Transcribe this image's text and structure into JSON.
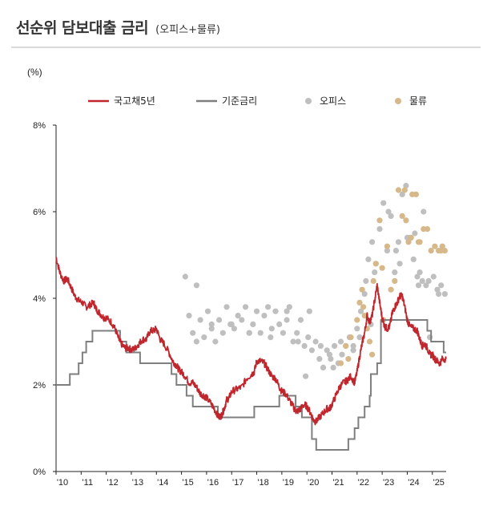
{
  "title": "선순위 담보대출 금리",
  "subtitle": "(오피스+물류)",
  "chart_data": {
    "type": "line",
    "ylabel": "(%)",
    "ylim": [
      0,
      8
    ],
    "yticks": [
      {
        "value": 0,
        "label": "0%"
      },
      {
        "value": 2,
        "label": "2%"
      },
      {
        "value": 4,
        "label": "4%"
      },
      {
        "value": 6,
        "label": "6%"
      },
      {
        "value": 8,
        "label": "8%"
      }
    ],
    "xlim": [
      2010.0,
      2025.55
    ],
    "xticks": [
      {
        "value": 2010,
        "label": "'10"
      },
      {
        "value": 2011,
        "label": "'11"
      },
      {
        "value": 2012,
        "label": "'12"
      },
      {
        "value": 2013,
        "label": "'13"
      },
      {
        "value": 2014,
        "label": "'14"
      },
      {
        "value": 2015,
        "label": "'15"
      },
      {
        "value": 2016,
        "label": "'16"
      },
      {
        "value": 2017,
        "label": "'17"
      },
      {
        "value": 2018,
        "label": "'18"
      },
      {
        "value": 2019,
        "label": "'19"
      },
      {
        "value": 2020,
        "label": "'20"
      },
      {
        "value": 2021,
        "label": "'21"
      },
      {
        "value": 2022,
        "label": "'22"
      },
      {
        "value": 2023,
        "label": "'23"
      },
      {
        "value": 2024,
        "label": "'24"
      },
      {
        "value": 2025,
        "label": "'25"
      }
    ],
    "grid": false,
    "legend_position": "top",
    "series": [
      {
        "name": "국고채5년",
        "kind": "line",
        "color": "#c0262d",
        "x": [
          2010.0,
          2010.15,
          2010.3,
          2010.45,
          2010.6,
          2010.75,
          2010.9,
          2011.05,
          2011.2,
          2011.35,
          2011.5,
          2011.6,
          2011.75,
          2011.9,
          2012.0,
          2012.2,
          2012.35,
          2012.5,
          2012.6,
          2012.75,
          2012.9,
          2013.0,
          2013.15,
          2013.3,
          2013.45,
          2013.6,
          2013.75,
          2013.9,
          2014.0,
          2014.15,
          2014.3,
          2014.5,
          2014.65,
          2014.8,
          2014.9,
          2015.0,
          2015.15,
          2015.3,
          2015.45,
          2015.6,
          2015.75,
          2015.9,
          2016.0,
          2016.2,
          2016.35,
          2016.5,
          2016.6,
          2016.7,
          2016.8,
          2016.9,
          2017.0,
          2017.2,
          2017.4,
          2017.6,
          2017.8,
          2017.9,
          2018.0,
          2018.15,
          2018.3,
          2018.45,
          2018.6,
          2018.75,
          2018.9,
          2019.0,
          2019.15,
          2019.3,
          2019.45,
          2019.55,
          2019.65,
          2019.75,
          2019.9,
          2020.0,
          2020.15,
          2020.25,
          2020.35,
          2020.5,
          2020.65,
          2020.8,
          2020.9,
          2021.0,
          2021.15,
          2021.3,
          2021.45,
          2021.6,
          2021.75,
          2021.9,
          2022.0,
          2022.1,
          2022.2,
          2022.3,
          2022.4,
          2022.5,
          2022.6,
          2022.7,
          2022.8,
          2022.9,
          2023.0,
          2023.1,
          2023.2,
          2023.3,
          2023.4,
          2023.5,
          2023.6,
          2023.7,
          2023.8,
          2023.9,
          2024.0,
          2024.1,
          2024.25,
          2024.4,
          2024.5,
          2024.6,
          2024.7,
          2024.8,
          2024.9,
          2025.0,
          2025.1,
          2025.2,
          2025.3,
          2025.4,
          2025.55
        ],
        "y": [
          4.95,
          4.6,
          4.4,
          4.45,
          4.25,
          4.05,
          3.95,
          3.9,
          3.8,
          3.85,
          3.9,
          3.75,
          3.65,
          3.55,
          3.55,
          3.45,
          3.3,
          3.05,
          2.95,
          2.85,
          2.85,
          2.8,
          2.85,
          2.95,
          3.05,
          3.05,
          3.25,
          3.25,
          3.3,
          3.05,
          2.95,
          2.75,
          2.55,
          2.45,
          2.35,
          2.3,
          2.2,
          2.05,
          2.05,
          1.95,
          1.8,
          1.75,
          1.7,
          1.55,
          1.4,
          1.25,
          1.3,
          1.45,
          1.65,
          1.7,
          1.85,
          1.9,
          1.95,
          2.15,
          2.25,
          2.3,
          2.55,
          2.55,
          2.5,
          2.35,
          2.2,
          2.15,
          1.95,
          1.85,
          1.8,
          1.65,
          1.5,
          1.4,
          1.4,
          1.45,
          1.55,
          1.5,
          1.35,
          1.2,
          1.15,
          1.25,
          1.35,
          1.45,
          1.45,
          1.55,
          1.75,
          1.95,
          2.05,
          2.1,
          2.2,
          2.05,
          2.3,
          2.65,
          2.95,
          3.2,
          3.6,
          3.45,
          3.6,
          3.95,
          4.3,
          3.9,
          3.55,
          3.35,
          3.3,
          3.35,
          3.65,
          3.8,
          3.9,
          4.05,
          4.05,
          3.8,
          3.5,
          3.35,
          3.3,
          3.25,
          3.05,
          2.9,
          2.95,
          2.85,
          2.7,
          2.7,
          2.6,
          2.55,
          2.5,
          2.6,
          2.6
        ]
      },
      {
        "name": "기준금리",
        "kind": "step",
        "color": "#7f7f7f",
        "x": [
          2010.0,
          2010.55,
          2010.9,
          2011.05,
          2011.2,
          2011.45,
          2012.55,
          2012.8,
          2013.35,
          2014.6,
          2014.8,
          2015.2,
          2015.45,
          2016.45,
          2017.9,
          2018.9,
          2019.55,
          2019.8,
          2020.2,
          2020.37,
          2021.65,
          2021.9,
          2022.05,
          2022.3,
          2022.5,
          2022.55,
          2022.8,
          2022.95,
          2024.8,
          2024.95,
          2025.45
        ],
        "y": [
          2.0,
          2.25,
          2.5,
          2.75,
          3.0,
          3.25,
          3.0,
          2.75,
          2.5,
          2.25,
          2.0,
          1.75,
          1.5,
          1.25,
          1.5,
          1.75,
          1.5,
          1.25,
          0.75,
          0.5,
          0.75,
          1.0,
          1.25,
          1.5,
          1.75,
          2.25,
          2.5,
          3.5,
          3.25,
          3.0,
          2.75
        ]
      },
      {
        "name": "오피스",
        "kind": "scatter",
        "color": "#bfbfbf",
        "x": [
          2015.15,
          2015.3,
          2015.45,
          2015.6,
          2015.75,
          2015.9,
          2016.05,
          2016.2,
          2016.35,
          2016.5,
          2016.65,
          2016.8,
          2016.95,
          2017.1,
          2017.25,
          2017.4,
          2017.55,
          2017.7,
          2017.85,
          2018.0,
          2018.15,
          2018.3,
          2018.45,
          2018.6,
          2018.75,
          2018.9,
          2019.05,
          2019.2,
          2019.3,
          2019.45,
          2019.6,
          2019.75,
          2019.9,
          2020.05,
          2020.2,
          2020.35,
          2020.5,
          2020.65,
          2020.8,
          2020.95,
          2021.1,
          2021.25,
          2021.4,
          2021.55,
          2021.7,
          2021.85,
          2022.0,
          2022.15,
          2022.3,
          2022.45,
          2022.6,
          2022.75,
          2022.9,
          2023.05,
          2023.2,
          2023.35,
          2023.5,
          2023.65,
          2023.8,
          2023.95,
          2024.1,
          2024.25,
          2024.4,
          2024.5,
          2024.6,
          2024.75,
          2024.9,
          2025.05,
          2025.2,
          2025.35,
          2025.5,
          2015.6,
          2016.2,
          2017.0,
          2017.7,
          2018.55,
          2019.2,
          2019.65,
          2020.1,
          2020.9,
          2021.35,
          2021.85,
          2022.35,
          2022.7,
          2023.25,
          2023.7,
          2024.0,
          2024.45,
          2024.85,
          2025.25,
          2019.95,
          2020.55,
          2021.05,
          2022.1,
          2022.55,
          2023.55,
          2024.3,
          2024.65
        ],
        "y": [
          4.5,
          3.6,
          3.2,
          3.0,
          3.5,
          3.1,
          3.7,
          3.3,
          3.0,
          3.5,
          3.2,
          3.8,
          3.4,
          3.3,
          3.6,
          3.5,
          3.8,
          3.2,
          3.4,
          3.7,
          3.2,
          3.6,
          3.8,
          3.3,
          3.7,
          3.4,
          3.2,
          3.5,
          3.8,
          3.0,
          3.2,
          3.5,
          2.9,
          3.1,
          2.8,
          3.0,
          2.6,
          2.4,
          2.8,
          2.6,
          2.9,
          2.5,
          2.7,
          2.9,
          3.1,
          2.8,
          3.3,
          3.7,
          4.1,
          4.9,
          5.3,
          4.8,
          5.6,
          6.2,
          5.1,
          5.9,
          4.6,
          5.3,
          6.4,
          6.6,
          5.4,
          4.9,
          4.5,
          4.6,
          4.4,
          4.3,
          3.1,
          4.5,
          4.2,
          4.3,
          4.1,
          4.3,
          3.4,
          3.4,
          3.2,
          3.1,
          3.7,
          3.0,
          3.7,
          2.7,
          3.0,
          2.9,
          4.4,
          4.6,
          6.0,
          4.8,
          5.4,
          4.3,
          4.4,
          4.1,
          2.2,
          2.9,
          2.4,
          3.1,
          3.4,
          5.1,
          5.5,
          6.0
        ],
        "ycap": 6.62
      },
      {
        "name": "물류",
        "kind": "scatter",
        "color": "#d6b88a",
        "x": [
          2021.35,
          2021.55,
          2021.75,
          2022.0,
          2022.1,
          2022.2,
          2022.3,
          2022.4,
          2022.5,
          2022.6,
          2022.75,
          2022.9,
          2023.05,
          2023.2,
          2023.35,
          2023.5,
          2023.65,
          2023.8,
          2023.95,
          2024.05,
          2024.2,
          2024.35,
          2024.5,
          2024.65,
          2024.8,
          2024.95,
          2025.1,
          2025.25,
          2025.4,
          2025.5,
          2021.65,
          2022.25,
          2022.65,
          2023.0,
          2023.9,
          2024.15,
          2024.45,
          2025.35
        ],
        "y": [
          2.5,
          2.9,
          3.1,
          3.5,
          3.9,
          4.2,
          3.6,
          3.3,
          3.0,
          2.7,
          4.8,
          5.8,
          3.5,
          5.2,
          4.2,
          4.4,
          6.5,
          5.9,
          5.8,
          5.3,
          6.4,
          6.4,
          5.3,
          5.6,
          5.6,
          5.1,
          5.2,
          5.1,
          5.2,
          5.1,
          2.6,
          3.8,
          4.4,
          4.7,
          6.5,
          5.4,
          5.3,
          5.1
        ]
      }
    ]
  }
}
